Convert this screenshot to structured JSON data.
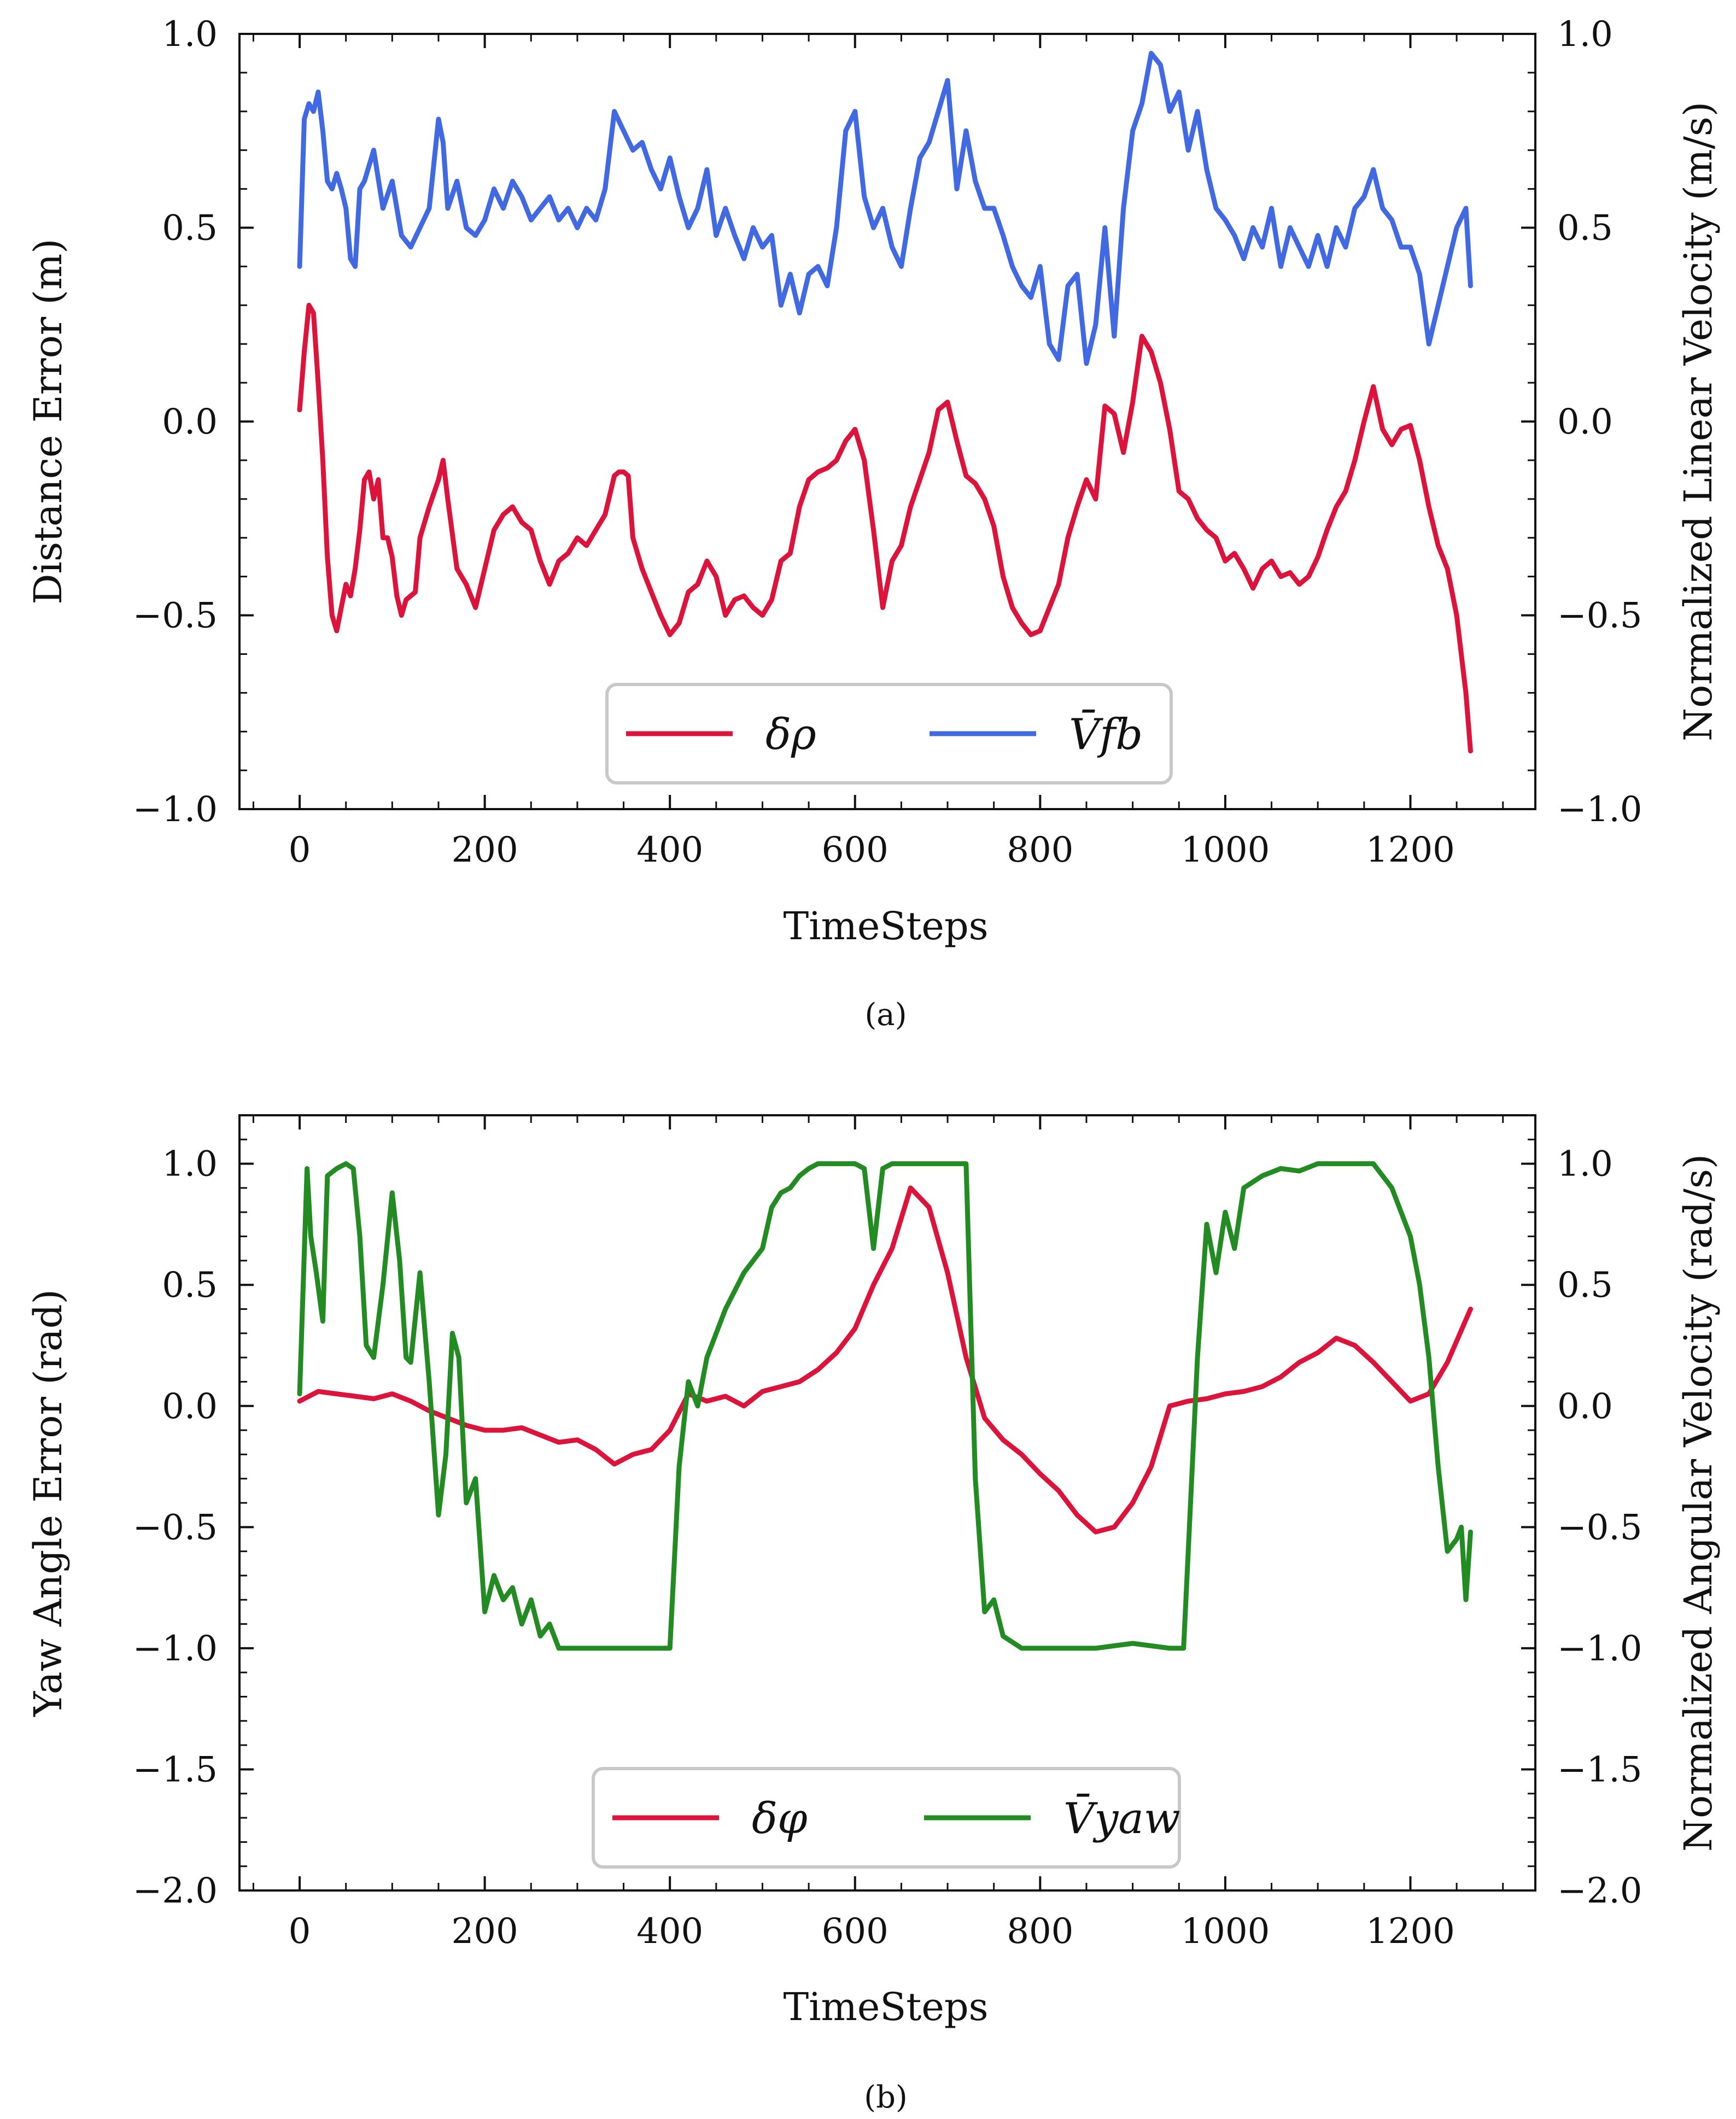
{
  "chart_data": [
    {
      "id": "a",
      "type": "line",
      "caption": "(a)",
      "xlabel": "TimeSteps",
      "ylabel": "Distance Error (m)",
      "y2label": "Normalized Linear Velocity (m/s)",
      "xlim": [
        -65,
        1335
      ],
      "ylim": [
        -1.0,
        1.0
      ],
      "xticks": [
        0,
        200,
        400,
        600,
        800,
        1000,
        1200
      ],
      "xtick_labels": [
        "0",
        "200",
        "400",
        "600",
        "800",
        "1000",
        "1200"
      ],
      "yticks": [
        -1.0,
        -0.5,
        0.0,
        0.5,
        1.0
      ],
      "ytick_labels": [
        "−1.0",
        "−0.5",
        "0.0",
        "0.5",
        "1.0"
      ],
      "legend_position": "bottom-center",
      "series": [
        {
          "name": "δρ",
          "color": "#dc143c",
          "x": [
            0,
            5,
            10,
            15,
            20,
            25,
            30,
            35,
            40,
            45,
            50,
            55,
            60,
            65,
            70,
            75,
            80,
            85,
            90,
            95,
            100,
            105,
            110,
            115,
            120,
            125,
            130,
            140,
            150,
            155,
            160,
            170,
            180,
            190,
            200,
            210,
            220,
            230,
            240,
            250,
            260,
            270,
            280,
            290,
            300,
            310,
            320,
            330,
            340,
            345,
            350,
            355,
            360,
            370,
            380,
            390,
            400,
            410,
            420,
            430,
            440,
            450,
            460,
            470,
            480,
            490,
            500,
            510,
            520,
            530,
            540,
            550,
            560,
            570,
            580,
            590,
            600,
            610,
            620,
            630,
            640,
            650,
            660,
            670,
            680,
            690,
            700,
            710,
            720,
            730,
            740,
            750,
            760,
            770,
            780,
            790,
            800,
            810,
            820,
            830,
            840,
            850,
            860,
            870,
            880,
            890,
            900,
            910,
            920,
            930,
            940,
            950,
            960,
            970,
            980,
            990,
            1000,
            1010,
            1020,
            1030,
            1040,
            1050,
            1060,
            1070,
            1080,
            1090,
            1100,
            1110,
            1120,
            1130,
            1140,
            1150,
            1160,
            1170,
            1180,
            1190,
            1200,
            1210,
            1220,
            1230,
            1240,
            1250,
            1260,
            1265
          ],
          "values": [
            0.03,
            0.18,
            0.3,
            0.28,
            0.1,
            -0.1,
            -0.35,
            -0.5,
            -0.54,
            -0.48,
            -0.42,
            -0.45,
            -0.38,
            -0.28,
            -0.15,
            -0.13,
            -0.2,
            -0.15,
            -0.3,
            -0.3,
            -0.35,
            -0.45,
            -0.5,
            -0.46,
            -0.45,
            -0.44,
            -0.3,
            -0.22,
            -0.15,
            -0.1,
            -0.2,
            -0.38,
            -0.42,
            -0.48,
            -0.38,
            -0.28,
            -0.24,
            -0.22,
            -0.26,
            -0.28,
            -0.36,
            -0.42,
            -0.36,
            -0.34,
            -0.3,
            -0.32,
            -0.28,
            -0.24,
            -0.14,
            -0.13,
            -0.13,
            -0.14,
            -0.3,
            -0.38,
            -0.44,
            -0.5,
            -0.55,
            -0.52,
            -0.44,
            -0.42,
            -0.36,
            -0.4,
            -0.5,
            -0.46,
            -0.45,
            -0.48,
            -0.5,
            -0.46,
            -0.36,
            -0.34,
            -0.22,
            -0.15,
            -0.13,
            -0.12,
            -0.1,
            -0.05,
            -0.02,
            -0.1,
            -0.28,
            -0.48,
            -0.36,
            -0.32,
            -0.22,
            -0.15,
            -0.08,
            0.03,
            0.05,
            -0.05,
            -0.14,
            -0.16,
            -0.2,
            -0.27,
            -0.4,
            -0.48,
            -0.52,
            -0.55,
            -0.54,
            -0.48,
            -0.42,
            -0.3,
            -0.22,
            -0.15,
            -0.2,
            0.04,
            0.02,
            -0.08,
            0.05,
            0.22,
            0.18,
            0.1,
            -0.02,
            -0.18,
            -0.2,
            -0.25,
            -0.28,
            -0.3,
            -0.36,
            -0.34,
            -0.38,
            -0.43,
            -0.38,
            -0.36,
            -0.4,
            -0.39,
            -0.42,
            -0.4,
            -0.35,
            -0.28,
            -0.22,
            -0.18,
            -0.1,
            0.0,
            0.09,
            -0.02,
            -0.06,
            -0.02,
            -0.01,
            -0.1,
            -0.22,
            -0.32,
            -0.38,
            -0.5,
            -0.7,
            -0.85
          ]
        },
        {
          "name": "V̄fb",
          "color": "#4169e1",
          "axis": "right",
          "x": [
            0,
            5,
            10,
            15,
            20,
            25,
            30,
            35,
            40,
            45,
            50,
            55,
            60,
            65,
            70,
            80,
            90,
            100,
            110,
            120,
            130,
            140,
            150,
            155,
            160,
            170,
            180,
            190,
            200,
            210,
            220,
            230,
            240,
            250,
            260,
            270,
            280,
            290,
            300,
            310,
            320,
            330,
            340,
            350,
            360,
            370,
            380,
            390,
            400,
            410,
            420,
            430,
            440,
            450,
            460,
            470,
            480,
            490,
            500,
            510,
            520,
            530,
            540,
            550,
            560,
            570,
            580,
            590,
            600,
            610,
            620,
            630,
            640,
            650,
            660,
            670,
            680,
            690,
            700,
            710,
            720,
            730,
            740,
            750,
            760,
            770,
            780,
            790,
            800,
            810,
            820,
            830,
            840,
            850,
            860,
            870,
            880,
            890,
            900,
            910,
            920,
            930,
            940,
            950,
            960,
            970,
            980,
            990,
            1000,
            1010,
            1020,
            1030,
            1040,
            1050,
            1060,
            1070,
            1080,
            1090,
            1100,
            1110,
            1120,
            1130,
            1140,
            1150,
            1160,
            1170,
            1180,
            1190,
            1200,
            1210,
            1220,
            1230,
            1240,
            1250,
            1260,
            1265
          ],
          "values": [
            0.4,
            0.78,
            0.82,
            0.8,
            0.85,
            0.75,
            0.62,
            0.6,
            0.64,
            0.6,
            0.55,
            0.42,
            0.4,
            0.6,
            0.62,
            0.7,
            0.55,
            0.62,
            0.48,
            0.45,
            0.5,
            0.55,
            0.78,
            0.72,
            0.55,
            0.62,
            0.5,
            0.48,
            0.52,
            0.6,
            0.55,
            0.62,
            0.58,
            0.52,
            0.55,
            0.58,
            0.52,
            0.55,
            0.5,
            0.55,
            0.52,
            0.6,
            0.8,
            0.75,
            0.7,
            0.72,
            0.65,
            0.6,
            0.68,
            0.58,
            0.5,
            0.55,
            0.65,
            0.48,
            0.55,
            0.48,
            0.42,
            0.5,
            0.45,
            0.48,
            0.3,
            0.38,
            0.28,
            0.38,
            0.4,
            0.35,
            0.5,
            0.75,
            0.8,
            0.58,
            0.5,
            0.55,
            0.45,
            0.4,
            0.55,
            0.68,
            0.72,
            0.8,
            0.88,
            0.6,
            0.75,
            0.62,
            0.55,
            0.55,
            0.48,
            0.4,
            0.35,
            0.32,
            0.4,
            0.2,
            0.16,
            0.35,
            0.38,
            0.15,
            0.25,
            0.5,
            0.22,
            0.55,
            0.75,
            0.82,
            0.95,
            0.92,
            0.8,
            0.85,
            0.7,
            0.8,
            0.65,
            0.55,
            0.52,
            0.48,
            0.42,
            0.5,
            0.45,
            0.55,
            0.4,
            0.5,
            0.45,
            0.4,
            0.48,
            0.4,
            0.5,
            0.45,
            0.55,
            0.58,
            0.65,
            0.55,
            0.52,
            0.45,
            0.45,
            0.38,
            0.2,
            0.3,
            0.4,
            0.5,
            0.55,
            0.35
          ]
        }
      ]
    },
    {
      "id": "b",
      "type": "line",
      "caption": "(b)",
      "xlabel": "TimeSteps",
      "ylabel": "Yaw Angle Error (rad)",
      "y2label": "Normalized Angular Velocity (rad/s)",
      "xlim": [
        -65,
        1335
      ],
      "ylim": [
        -2.0,
        1.2
      ],
      "xticks": [
        0,
        200,
        400,
        600,
        800,
        1000,
        1200
      ],
      "xtick_labels": [
        "0",
        "200",
        "400",
        "600",
        "800",
        "1000",
        "1200"
      ],
      "yticks": [
        -2.0,
        -1.5,
        -1.0,
        -0.5,
        0.0,
        0.5,
        1.0
      ],
      "ytick_labels": [
        "−2.0",
        "−1.5",
        "−1.0",
        "−0.5",
        "0.0",
        "0.5",
        "1.0"
      ],
      "legend_position": "bottom-center",
      "series": [
        {
          "name": "δφ",
          "color": "#dc143c",
          "x": [
            0,
            20,
            40,
            60,
            80,
            100,
            120,
            140,
            160,
            180,
            200,
            220,
            240,
            260,
            280,
            300,
            320,
            340,
            360,
            380,
            400,
            420,
            440,
            460,
            480,
            500,
            520,
            540,
            560,
            580,
            600,
            620,
            640,
            660,
            680,
            700,
            720,
            740,
            760,
            780,
            800,
            820,
            840,
            860,
            880,
            900,
            920,
            940,
            960,
            980,
            1000,
            1020,
            1040,
            1060,
            1080,
            1100,
            1120,
            1140,
            1160,
            1180,
            1200,
            1220,
            1240,
            1265
          ],
          "values": [
            0.02,
            0.06,
            0.05,
            0.04,
            0.03,
            0.05,
            0.02,
            -0.02,
            -0.05,
            -0.08,
            -0.1,
            -0.1,
            -0.09,
            -0.12,
            -0.15,
            -0.14,
            -0.18,
            -0.24,
            -0.2,
            -0.18,
            -0.1,
            0.05,
            0.02,
            0.04,
            0.0,
            0.06,
            0.08,
            0.1,
            0.15,
            0.22,
            0.32,
            0.5,
            0.65,
            0.9,
            0.82,
            0.55,
            0.2,
            -0.05,
            -0.14,
            -0.2,
            -0.28,
            -0.35,
            -0.45,
            -0.52,
            -0.5,
            -0.4,
            -0.25,
            0.0,
            0.02,
            0.03,
            0.05,
            0.06,
            0.08,
            0.12,
            0.18,
            0.22,
            0.28,
            0.25,
            0.18,
            0.1,
            0.02,
            0.05,
            0.18,
            0.4
          ]
        },
        {
          "name": "V̄yaw",
          "color": "#228b22",
          "axis": "right",
          "x": [
            0,
            8,
            12,
            18,
            25,
            30,
            40,
            50,
            58,
            65,
            72,
            80,
            90,
            100,
            108,
            115,
            120,
            130,
            140,
            150,
            158,
            165,
            172,
            180,
            190,
            200,
            210,
            220,
            230,
            240,
            250,
            260,
            270,
            280,
            300,
            330,
            360,
            390,
            400,
            410,
            420,
            430,
            440,
            460,
            480,
            500,
            510,
            520,
            530,
            540,
            550,
            560,
            580,
            600,
            610,
            620,
            630,
            640,
            650,
            700,
            720,
            730,
            740,
            750,
            760,
            780,
            820,
            860,
            900,
            940,
            955,
            960,
            970,
            980,
            990,
            1000,
            1010,
            1020,
            1040,
            1060,
            1080,
            1100,
            1140,
            1160,
            1180,
            1200,
            1210,
            1220,
            1230,
            1240,
            1250,
            1255,
            1260,
            1265
          ],
          "values": [
            0.05,
            0.98,
            0.7,
            0.55,
            0.35,
            0.95,
            0.98,
            1.0,
            0.98,
            0.7,
            0.25,
            0.2,
            0.5,
            0.88,
            0.6,
            0.2,
            0.18,
            0.55,
            0.1,
            -0.45,
            -0.2,
            0.3,
            0.2,
            -0.4,
            -0.3,
            -0.85,
            -0.7,
            -0.8,
            -0.75,
            -0.9,
            -0.8,
            -0.95,
            -0.9,
            -1.0,
            -1.0,
            -1.0,
            -1.0,
            -1.0,
            -1.0,
            -0.25,
            0.1,
            0.0,
            0.2,
            0.4,
            0.55,
            0.65,
            0.82,
            0.88,
            0.9,
            0.95,
            0.98,
            1.0,
            1.0,
            1.0,
            0.98,
            0.65,
            0.98,
            1.0,
            1.0,
            1.0,
            1.0,
            -0.3,
            -0.85,
            -0.8,
            -0.95,
            -1.0,
            -1.0,
            -1.0,
            -0.98,
            -1.0,
            -1.0,
            -0.6,
            0.2,
            0.75,
            0.55,
            0.8,
            0.65,
            0.9,
            0.95,
            0.98,
            0.97,
            1.0,
            1.0,
            1.0,
            0.9,
            0.7,
            0.5,
            0.2,
            -0.25,
            -0.6,
            -0.55,
            -0.5,
            -0.8,
            -0.52
          ]
        }
      ]
    }
  ]
}
